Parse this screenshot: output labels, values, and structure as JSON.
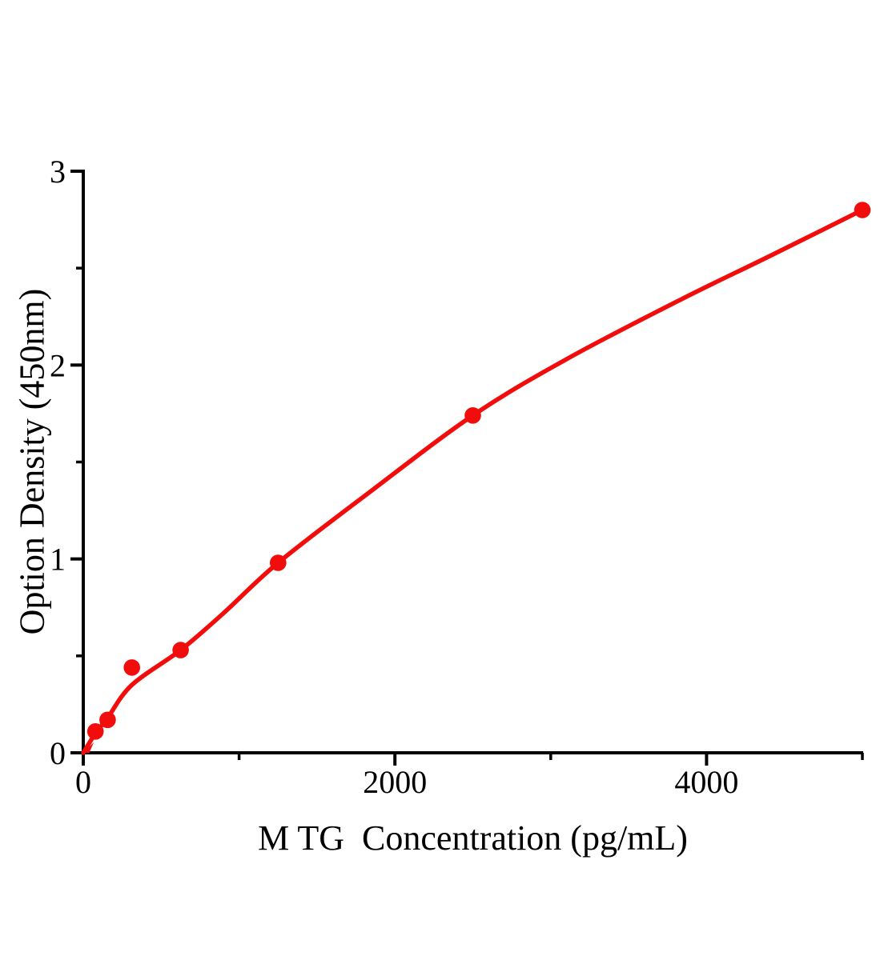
{
  "figure": {
    "background": "#ffffff",
    "text_color": "#000000"
  },
  "chart_data": {
    "type": "scatter",
    "title": "",
    "xlabel": "M TG  Concentration (pg/mL)",
    "ylabel": "Option Density (450nm)",
    "grid": false,
    "legend": null,
    "series_color": "#f20d0d",
    "axis_color": "#000000",
    "x_axis": {
      "range": [
        0,
        5000
      ],
      "major_ticks": [
        0,
        2000,
        4000
      ],
      "minor_ticks": [
        1000,
        3000,
        5000
      ]
    },
    "y_axis": {
      "range": [
        0,
        3
      ],
      "major_ticks": [
        0,
        1,
        2,
        3
      ],
      "minor_ticks": [
        0.5,
        1.5,
        2.5
      ]
    },
    "series": [
      {
        "name": "standard-points",
        "type": "scatter",
        "marker": "circle",
        "color": "#f20d0d",
        "points": [
          {
            "x": 78,
            "y": 0.11
          },
          {
            "x": 156,
            "y": 0.17
          },
          {
            "x": 312,
            "y": 0.44
          },
          {
            "x": 625,
            "y": 0.53
          },
          {
            "x": 1250,
            "y": 0.98
          },
          {
            "x": 2500,
            "y": 1.74
          },
          {
            "x": 5000,
            "y": 2.8
          }
        ]
      },
      {
        "name": "fit-curve",
        "type": "line",
        "color": "#f20d0d",
        "points": [
          [
            0,
            0
          ],
          [
            78,
            0.1
          ],
          [
            156,
            0.18
          ],
          [
            312,
            0.35
          ],
          [
            625,
            0.53
          ],
          [
            900,
            0.72
          ],
          [
            1250,
            0.98
          ],
          [
            1830,
            1.34
          ],
          [
            2500,
            1.74
          ],
          [
            3100,
            2.03
          ],
          [
            3840,
            2.34
          ],
          [
            4400,
            2.56
          ],
          [
            5000,
            2.8
          ]
        ]
      }
    ],
    "origin_marker": {
      "type": "wedge",
      "color": "#f20d0d",
      "points": [
        [
          0,
          0
        ],
        [
          68,
          0.054
        ],
        [
          38,
          0
        ]
      ]
    }
  }
}
